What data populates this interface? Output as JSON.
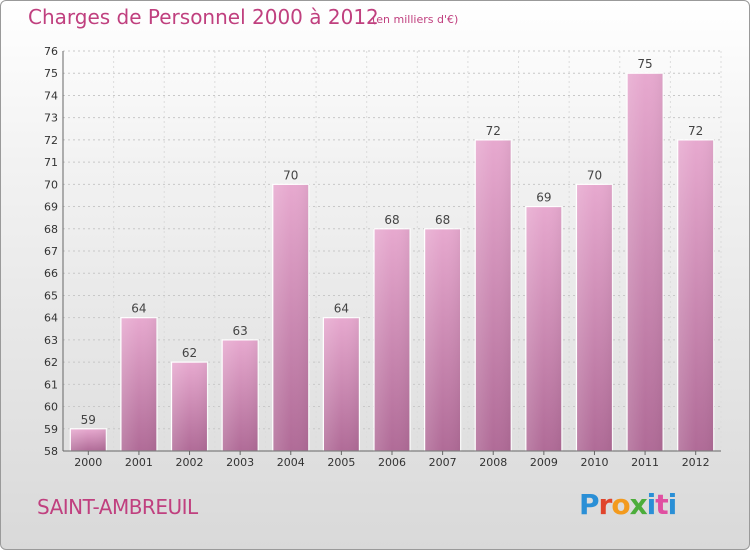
{
  "chart_data": {
    "type": "bar",
    "title": "Charges de Personnel 2000 à 2012",
    "subtitle": "(en milliers d'€)",
    "categories": [
      "2000",
      "2001",
      "2002",
      "2003",
      "2004",
      "2005",
      "2006",
      "2007",
      "2008",
      "2009",
      "2010",
      "2011",
      "2012"
    ],
    "values": [
      59,
      64,
      62,
      63,
      70,
      64,
      68,
      68,
      72,
      69,
      70,
      75,
      72
    ],
    "ylim": [
      58,
      76
    ],
    "yticks": [
      58,
      59,
      60,
      61,
      62,
      63,
      64,
      65,
      66,
      67,
      68,
      69,
      70,
      71,
      72,
      73,
      74,
      75,
      76
    ],
    "grid": true,
    "bar_color": "#d98bbb",
    "xlabel": "",
    "ylabel": ""
  },
  "footer": {
    "town": "SAINT-AMBREUIL",
    "logo_letters": [
      "P",
      "r",
      "o",
      "x",
      "i",
      "t",
      "i"
    ]
  }
}
